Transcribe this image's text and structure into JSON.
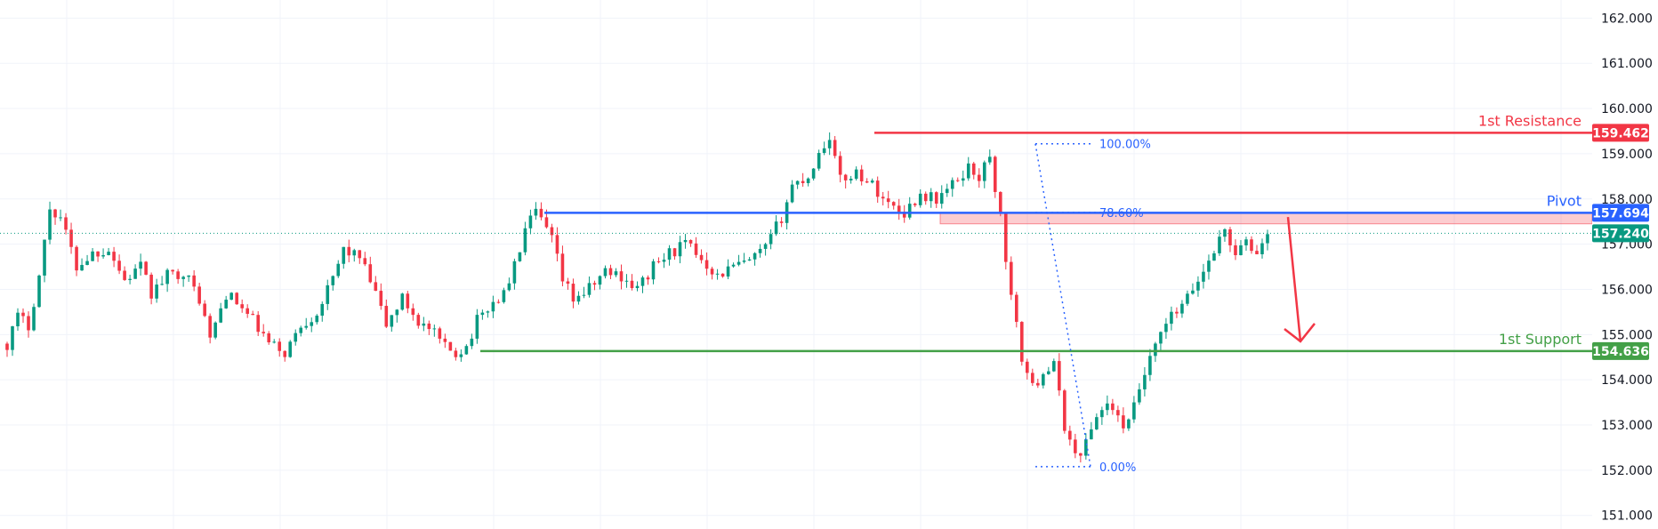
{
  "chart_data": {
    "type": "candlestick",
    "y_axis": {
      "ticks": [
        "151.000",
        "152.000",
        "153.000",
        "154.000",
        "155.000",
        "156.000",
        "157.000",
        "158.000",
        "159.000",
        "160.000",
        "161.000",
        "162.000"
      ],
      "ylim": [
        150.7,
        162.4
      ]
    },
    "levels": [
      {
        "name": "1st Resistance",
        "value": 159.462,
        "label": "159.462",
        "color": "#f23645"
      },
      {
        "name": "Pivot",
        "value": 157.694,
        "label": "157.694",
        "color": "#2962ff"
      },
      {
        "name": "1st Support",
        "value": 154.636,
        "label": "154.636",
        "color": "#43a047"
      }
    ],
    "last_price": {
      "value": 157.24,
      "label": "157.240",
      "color": "#089981"
    },
    "fibonacci": [
      {
        "label": "100.00%",
        "value": 159.22
      },
      {
        "label": "78.60%",
        "value": 157.7
      },
      {
        "label": "0.00%",
        "value": 152.08
      }
    ],
    "zone": {
      "top": 157.694,
      "bottom": 157.45
    },
    "colors": {
      "up": "#089981",
      "down": "#f23645",
      "grid": "#f0f3fa"
    },
    "annotation": {
      "arrow": "down",
      "color": "#f23645"
    },
    "price_path": [
      [
        0,
        154.8
      ],
      [
        2,
        155.4
      ],
      [
        4,
        155.2
      ],
      [
        6,
        156.3
      ],
      [
        8,
        157.8
      ],
      [
        10,
        157.6
      ],
      [
        13,
        156.5
      ],
      [
        16,
        156.8
      ],
      [
        19,
        156.9
      ],
      [
        22,
        156.2
      ],
      [
        25,
        156.5
      ],
      [
        27,
        155.9
      ],
      [
        30,
        156.3
      ],
      [
        33,
        156.4
      ],
      [
        36,
        155.8
      ],
      [
        38,
        154.9
      ],
      [
        41,
        155.9
      ],
      [
        43,
        155.7
      ],
      [
        46,
        155.3
      ],
      [
        49,
        154.8
      ],
      [
        52,
        154.6
      ],
      [
        55,
        155.2
      ],
      [
        58,
        155.5
      ],
      [
        61,
        156.2
      ],
      [
        63,
        156.9
      ],
      [
        66,
        156.7
      ],
      [
        69,
        155.9
      ],
      [
        71,
        155.2
      ],
      [
        74,
        155.8
      ],
      [
        77,
        155.3
      ],
      [
        80,
        155.0
      ],
      [
        82,
        154.7
      ],
      [
        84,
        154.6
      ],
      [
        86,
        154.75
      ],
      [
        88,
        155.3
      ],
      [
        90,
        155.6
      ],
      [
        93,
        155.9
      ],
      [
        95,
        156.5
      ],
      [
        97,
        157.3
      ],
      [
        99,
        157.7
      ],
      [
        102,
        157.1
      ],
      [
        104,
        156.2
      ],
      [
        106,
        155.8
      ],
      [
        109,
        156.0
      ],
      [
        112,
        156.4
      ],
      [
        115,
        156.3
      ],
      [
        118,
        156.0
      ],
      [
        121,
        156.5
      ],
      [
        124,
        156.8
      ],
      [
        127,
        157.0
      ],
      [
        130,
        156.7
      ],
      [
        133,
        156.3
      ],
      [
        136,
        156.5
      ],
      [
        139,
        156.6
      ],
      [
        142,
        156.9
      ],
      [
        145,
        157.6
      ],
      [
        147,
        158.3
      ],
      [
        150,
        158.5
      ],
      [
        152,
        159.0
      ],
      [
        154,
        159.4
      ],
      [
        156,
        158.4
      ],
      [
        159,
        158.6
      ],
      [
        162,
        158.3
      ],
      [
        165,
        157.9
      ],
      [
        168,
        157.7
      ],
      [
        171,
        158.1
      ],
      [
        174,
        158.0
      ],
      [
        177,
        158.3
      ],
      [
        180,
        158.7
      ],
      [
        182,
        158.5
      ],
      [
        184,
        158.9
      ],
      [
        186,
        157.6
      ],
      [
        188,
        155.8
      ],
      [
        190,
        154.5
      ],
      [
        192,
        153.8
      ],
      [
        194,
        154.2
      ],
      [
        196,
        154.3
      ],
      [
        198,
        153.0
      ],
      [
        200,
        152.3
      ],
      [
        202,
        152.6
      ],
      [
        204,
        153.2
      ],
      [
        206,
        153.5
      ],
      [
        208,
        153.1
      ],
      [
        210,
        153.0
      ],
      [
        212,
        153.8
      ],
      [
        214,
        154.4
      ],
      [
        216,
        155.0
      ],
      [
        218,
        155.4
      ],
      [
        220,
        155.6
      ],
      [
        222,
        156.0
      ],
      [
        224,
        156.4
      ],
      [
        226,
        156.9
      ],
      [
        228,
        157.3
      ],
      [
        230,
        156.8
      ],
      [
        232,
        157.0
      ],
      [
        234,
        156.8
      ],
      [
        236,
        157.24
      ]
    ]
  }
}
